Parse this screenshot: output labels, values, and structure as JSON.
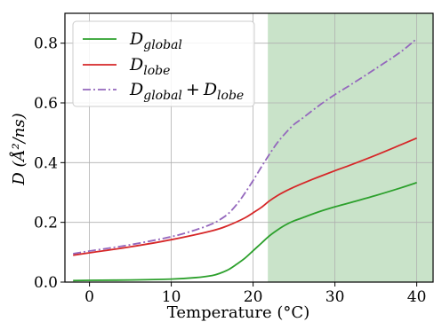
{
  "chart_data": {
    "type": "line",
    "xlabel": "Temperature (°C)",
    "ylabel": "D (Å²/ns)",
    "xlim": [
      -3,
      42
    ],
    "ylim": [
      0,
      0.9
    ],
    "xticks": [
      0,
      10,
      20,
      30,
      40
    ],
    "yticks": [
      0.0,
      0.2,
      0.4,
      0.6,
      0.8
    ],
    "xtick_labels": [
      "0",
      "10",
      "20",
      "30",
      "40"
    ],
    "ytick_labels": [
      "0.0",
      "0.2",
      "0.4",
      "0.6",
      "0.8"
    ],
    "grid": true,
    "legend_position": "top-left",
    "shaded_region": {
      "x_start": 21.8,
      "x_end": 42,
      "color": "#c9e3c9"
    },
    "series": [
      {
        "name": "D_global",
        "legend_main": "D",
        "legend_sub": "global",
        "color": "#2ca02c",
        "style": "solid",
        "x": [
          -2,
          0,
          5,
          10,
          13,
          15,
          16,
          17,
          18,
          19,
          20,
          21,
          22,
          23,
          24,
          25,
          26,
          28,
          30,
          32,
          35,
          38,
          40
        ],
        "y": [
          0.005,
          0.006,
          0.007,
          0.01,
          0.015,
          0.022,
          0.03,
          0.042,
          0.06,
          0.08,
          0.105,
          0.13,
          0.155,
          0.175,
          0.192,
          0.205,
          0.215,
          0.235,
          0.252,
          0.267,
          0.29,
          0.315,
          0.333
        ]
      },
      {
        "name": "D_lobe",
        "legend_main": "D",
        "legend_sub": "lobe",
        "color": "#d62728",
        "style": "solid",
        "x": [
          -2,
          0,
          5,
          10,
          15,
          17,
          19,
          20,
          21,
          22,
          23,
          24,
          25,
          26,
          28,
          30,
          32,
          35,
          38,
          40
        ],
        "y": [
          0.09,
          0.098,
          0.118,
          0.142,
          0.172,
          0.19,
          0.215,
          0.232,
          0.25,
          0.272,
          0.29,
          0.305,
          0.318,
          0.33,
          0.352,
          0.373,
          0.393,
          0.425,
          0.459,
          0.482
        ]
      },
      {
        "name": "D_global + D_lobe",
        "legend_main": "D",
        "legend_sub": "global",
        "legend_op": "+",
        "legend_main2": "D",
        "legend_sub2": "lobe",
        "color": "#9467bd",
        "style": "dashdot",
        "x": [
          -2,
          0,
          5,
          10,
          13,
          15,
          16,
          17,
          18,
          19,
          20,
          21,
          22,
          23,
          24,
          25,
          26,
          28,
          30,
          32,
          35,
          38,
          40
        ],
        "y": [
          0.095,
          0.104,
          0.125,
          0.152,
          0.175,
          0.195,
          0.21,
          0.23,
          0.26,
          0.298,
          0.34,
          0.385,
          0.428,
          0.468,
          0.5,
          0.528,
          0.548,
          0.59,
          0.628,
          0.662,
          0.715,
          0.77,
          0.815
        ]
      }
    ]
  }
}
